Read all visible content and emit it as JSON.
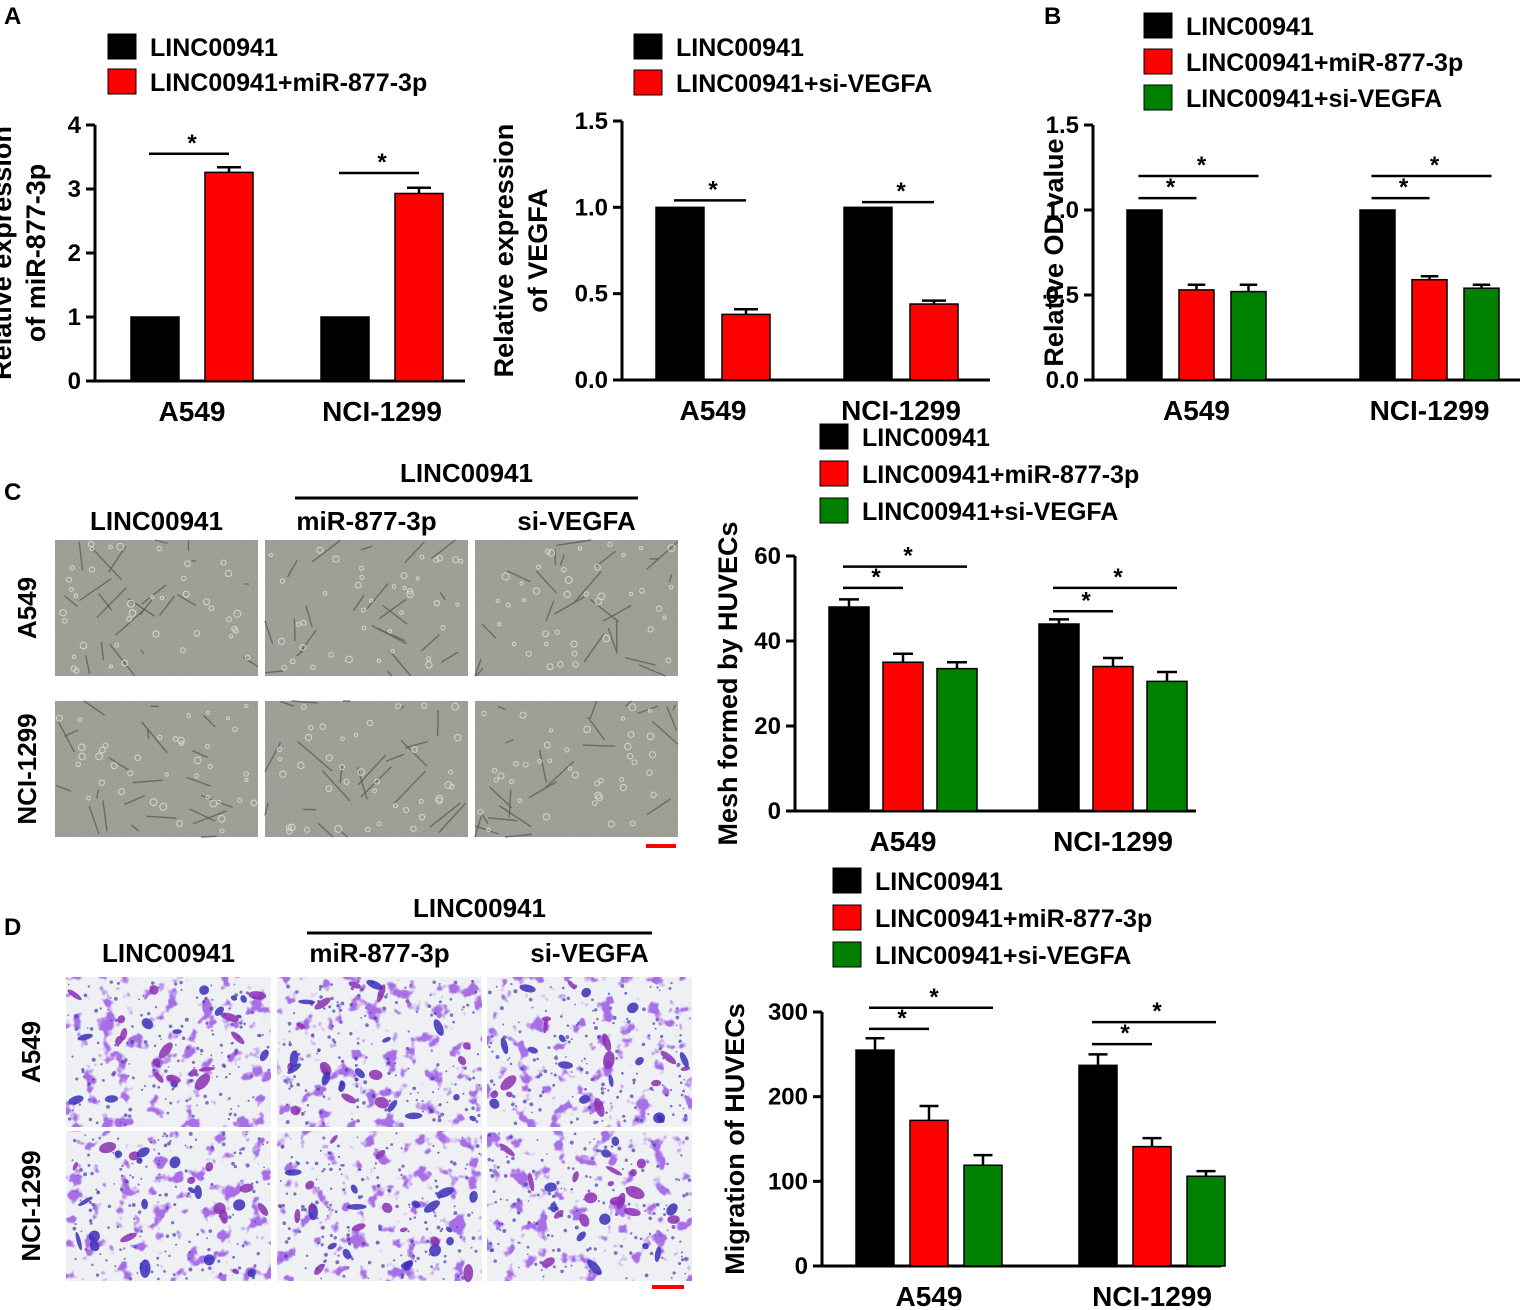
{
  "colors": {
    "black": "#000000",
    "red": "#ff0000",
    "green": "#008000",
    "scale_bar": "#ff0000"
  },
  "panel_letters": {
    "a": "A",
    "b": "B",
    "c": "C",
    "d": "D"
  },
  "image_panels": {
    "c": {
      "group_label": "LINC00941",
      "columns": [
        "LINC00941",
        "miR-877-3p",
        "si-VEGFA"
      ],
      "rows": [
        "A549",
        "NCI-1299"
      ],
      "style": "brightfield"
    },
    "d": {
      "group_label": "LINC00941",
      "columns": [
        "LINC00941",
        "miR-877-3p",
        "si-VEGFA"
      ],
      "rows": [
        "A549",
        "NCI-1299"
      ],
      "style": "crystal-violet"
    }
  },
  "chart_data": [
    {
      "id": "a1",
      "type": "bar",
      "ylabel_lines": [
        "Relative expression",
        "of miR-877-3p"
      ],
      "ylim": [
        0,
        4
      ],
      "yticks": [
        "0",
        "1",
        "2",
        "3",
        "4"
      ],
      "categories": [
        "A549",
        "NCI-1299"
      ],
      "series": [
        {
          "name": "LINC00941",
          "color": "#000000",
          "values": [
            1.0,
            1.0
          ],
          "errors": [
            0,
            0
          ]
        },
        {
          "name": "LINC00941+miR-877-3p",
          "color": "#ff0000",
          "values": [
            3.26,
            2.93
          ],
          "errors": [
            0.08,
            0.09
          ]
        }
      ],
      "significance": [
        {
          "category": 0,
          "from": 0,
          "to": 1,
          "y": 3.55,
          "label": "*"
        },
        {
          "category": 1,
          "from": 0,
          "to": 1,
          "y": 3.25,
          "label": "*"
        }
      ]
    },
    {
      "id": "a2",
      "type": "bar",
      "ylabel_lines": [
        "Relative expression",
        "of VEGFA"
      ],
      "ylim": [
        0,
        1.5
      ],
      "yticks": [
        "0.0",
        "0.5",
        "1.0",
        "1.5"
      ],
      "categories": [
        "A549",
        "NCI-1299"
      ],
      "series": [
        {
          "name": "LINC00941",
          "color": "#000000",
          "values": [
            1.0,
            1.0
          ],
          "errors": [
            0,
            0
          ]
        },
        {
          "name": "LINC00941+si-VEGFA",
          "color": "#ff0000",
          "values": [
            0.38,
            0.44
          ],
          "errors": [
            0.03,
            0.02
          ]
        }
      ],
      "significance": [
        {
          "category": 0,
          "from": 0,
          "to": 1,
          "y": 1.04,
          "label": "*"
        },
        {
          "category": 1,
          "from": 0,
          "to": 1,
          "y": 1.03,
          "label": "*"
        }
      ]
    },
    {
      "id": "b",
      "type": "bar",
      "ylabel_lines": [
        "Relative OD value"
      ],
      "ylim": [
        0,
        1.5
      ],
      "yticks": [
        "0.0",
        "0.5",
        "1.0",
        "1.5"
      ],
      "categories": [
        "A549",
        "NCI-1299"
      ],
      "series": [
        {
          "name": "LINC00941",
          "color": "#000000",
          "values": [
            1.0,
            1.0
          ],
          "errors": [
            0,
            0
          ]
        },
        {
          "name": "LINC00941+miR-877-3p",
          "color": "#ff0000",
          "values": [
            0.53,
            0.59
          ],
          "errors": [
            0.03,
            0.02
          ]
        },
        {
          "name": "LINC00941+si-VEGFA",
          "color": "#008000",
          "values": [
            0.52,
            0.54
          ],
          "errors": [
            0.04,
            0.02
          ]
        }
      ],
      "significance": [
        {
          "category": 0,
          "from": 0,
          "to": 1,
          "y": 1.07,
          "label": "*"
        },
        {
          "category": 0,
          "from": 0,
          "to": 2,
          "y": 1.2,
          "label": "*"
        },
        {
          "category": 1,
          "from": 0,
          "to": 1,
          "y": 1.07,
          "label": "*"
        },
        {
          "category": 1,
          "from": 0,
          "to": 2,
          "y": 1.2,
          "label": "*"
        }
      ]
    },
    {
      "id": "c",
      "type": "bar",
      "ylabel_lines": [
        "Mesh formed by HUVECs"
      ],
      "ylim": [
        0,
        60
      ],
      "yticks": [
        "0",
        "20",
        "40",
        "60"
      ],
      "categories": [
        "A549",
        "NCI-1299"
      ],
      "series": [
        {
          "name": "LINC00941",
          "color": "#000000",
          "values": [
            48,
            44
          ],
          "errors": [
            1.8,
            1.1
          ]
        },
        {
          "name": "LINC00941+miR-877-3p",
          "color": "#ff0000",
          "values": [
            35,
            34
          ],
          "errors": [
            2.0,
            2.0
          ]
        },
        {
          "name": "LINC00941+si-VEGFA",
          "color": "#008000",
          "values": [
            33.5,
            30.5
          ],
          "errors": [
            1.5,
            2.2
          ]
        }
      ],
      "significance": [
        {
          "category": 0,
          "from": 0,
          "to": 1,
          "y": 52.5,
          "label": "*"
        },
        {
          "category": 0,
          "from": 0,
          "to": 2,
          "y": 57.5,
          "label": "*"
        },
        {
          "category": 1,
          "from": 0,
          "to": 1,
          "y": 47,
          "label": "*"
        },
        {
          "category": 1,
          "from": 0,
          "to": 2,
          "y": 52.5,
          "label": "*"
        }
      ]
    },
    {
      "id": "d",
      "type": "bar",
      "ylabel_lines": [
        "Migration of HUVECs"
      ],
      "ylim": [
        0,
        300
      ],
      "yticks": [
        "0",
        "100",
        "200",
        "300"
      ],
      "categories": [
        "A549",
        "NCI-1299"
      ],
      "series": [
        {
          "name": "LINC00941",
          "color": "#000000",
          "values": [
            255,
            237
          ],
          "errors": [
            14,
            13
          ]
        },
        {
          "name": "LINC00941+miR-877-3p",
          "color": "#ff0000",
          "values": [
            172,
            141
          ],
          "errors": [
            17,
            10
          ]
        },
        {
          "name": "LINC00941+si-VEGFA",
          "color": "#008000",
          "values": [
            119,
            106
          ],
          "errors": [
            12,
            6
          ]
        }
      ],
      "significance": [
        {
          "category": 0,
          "from": 0,
          "to": 1,
          "y": 280,
          "label": "*"
        },
        {
          "category": 0,
          "from": 0,
          "to": 2,
          "y": 305,
          "label": "*"
        },
        {
          "category": 1,
          "from": 0,
          "to": 1,
          "y": 262,
          "label": "*"
        },
        {
          "category": 1,
          "from": 0,
          "to": 2,
          "y": 288,
          "label": "*"
        }
      ]
    }
  ]
}
